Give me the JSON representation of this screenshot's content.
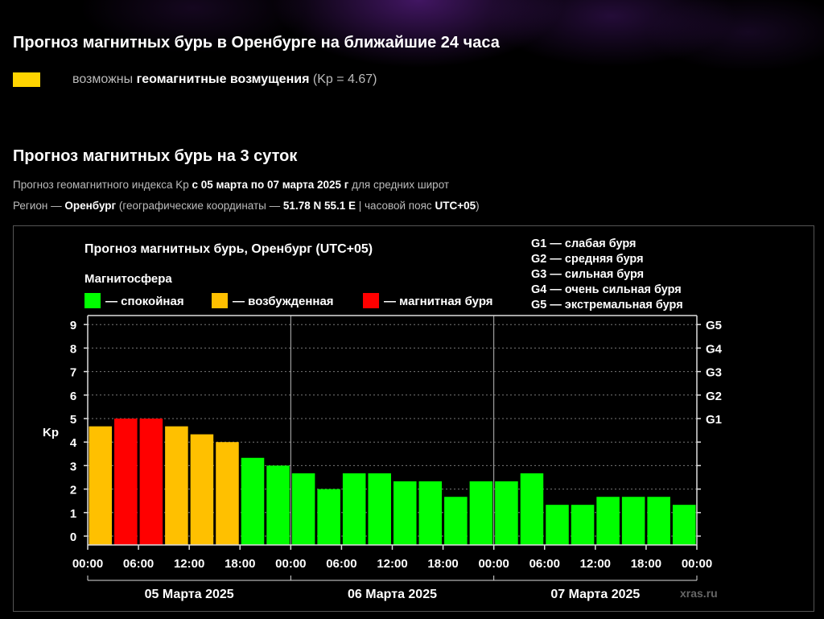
{
  "page": {
    "title_24h": "Прогноз магнитных бурь в Оренбурге на ближайшие 24 часа",
    "forecast": {
      "color": "#ffd400",
      "prefix": "возможны",
      "bold": "геомагнитные возмущения",
      "suffix": "(Kp = 4.67)"
    },
    "title_3d": "Прогноз магнитных бурь на 3 суток",
    "info1": {
      "prefix": "Прогноз геомагнитного индекса Kp",
      "bold": "с 05 марта по 07 марта 2025 г",
      "suffix": "для средних широт"
    },
    "info2": {
      "prefix": "Регион —",
      "region": "Оренбург",
      "coords_prefix": "(географические координаты —",
      "coords": "51.78 N 55.1 E",
      "tz_prefix": "| часовой пояс",
      "tz": "UTC+05",
      "close": ")"
    }
  },
  "chart_data": {
    "type": "bar",
    "title": "Прогноз магнитных бурь, Оренбург (UTC+05)",
    "legend_title": "Магнитосфера",
    "legend": [
      {
        "label": "— спокойная",
        "color": "#00ff00"
      },
      {
        "label": "— возбужденная",
        "color": "#ffc000"
      },
      {
        "label": "— магнитная буря",
        "color": "#ff0000"
      }
    ],
    "storm_scale": [
      "G1 — слабая буря",
      "G2 — средняя буря",
      "G3 — сильная буря",
      "G4 — очень сильная буря",
      "G5 — экстремальная буря"
    ],
    "ylabel": "Kp",
    "ylim": [
      0,
      9
    ],
    "y_ticks": [
      "0",
      "1",
      "2",
      "3",
      "4",
      "5",
      "6",
      "7",
      "8",
      "9"
    ],
    "right_ticks": [
      {
        "kp": 5,
        "label": "G1"
      },
      {
        "kp": 6,
        "label": "G2"
      },
      {
        "kp": 7,
        "label": "G3"
      },
      {
        "kp": 8,
        "label": "G4"
      },
      {
        "kp": 9,
        "label": "G5"
      }
    ],
    "x_ticks": [
      "00:00",
      "06:00",
      "12:00",
      "18:00",
      "00:00",
      "06:00",
      "12:00",
      "18:00",
      "00:00",
      "06:00",
      "12:00",
      "18:00",
      "00:00"
    ],
    "days": [
      "05 Марта 2025",
      "06 Марта 2025",
      "07 Марта 2025"
    ],
    "interval_hours": 3,
    "values": [
      4.67,
      5,
      5,
      4.67,
      4.33,
      4,
      3.33,
      3,
      2.67,
      2,
      2.67,
      2.67,
      2.33,
      2.33,
      1.67,
      2.33,
      2.33,
      2.67,
      1.33,
      1.33,
      1.67,
      1.67,
      1.67,
      1.33
    ],
    "status": [
      "excited",
      "storm",
      "storm",
      "excited",
      "excited",
      "excited",
      "calm",
      "calm",
      "calm",
      "calm",
      "calm",
      "calm",
      "calm",
      "calm",
      "calm",
      "calm",
      "calm",
      "calm",
      "calm",
      "calm",
      "calm",
      "calm",
      "calm",
      "calm"
    ],
    "status_colors": {
      "calm": "#00ff00",
      "excited": "#ffc000",
      "storm": "#ff0000"
    },
    "grid": "dashed horizontal",
    "watermark": "xras.ru"
  }
}
